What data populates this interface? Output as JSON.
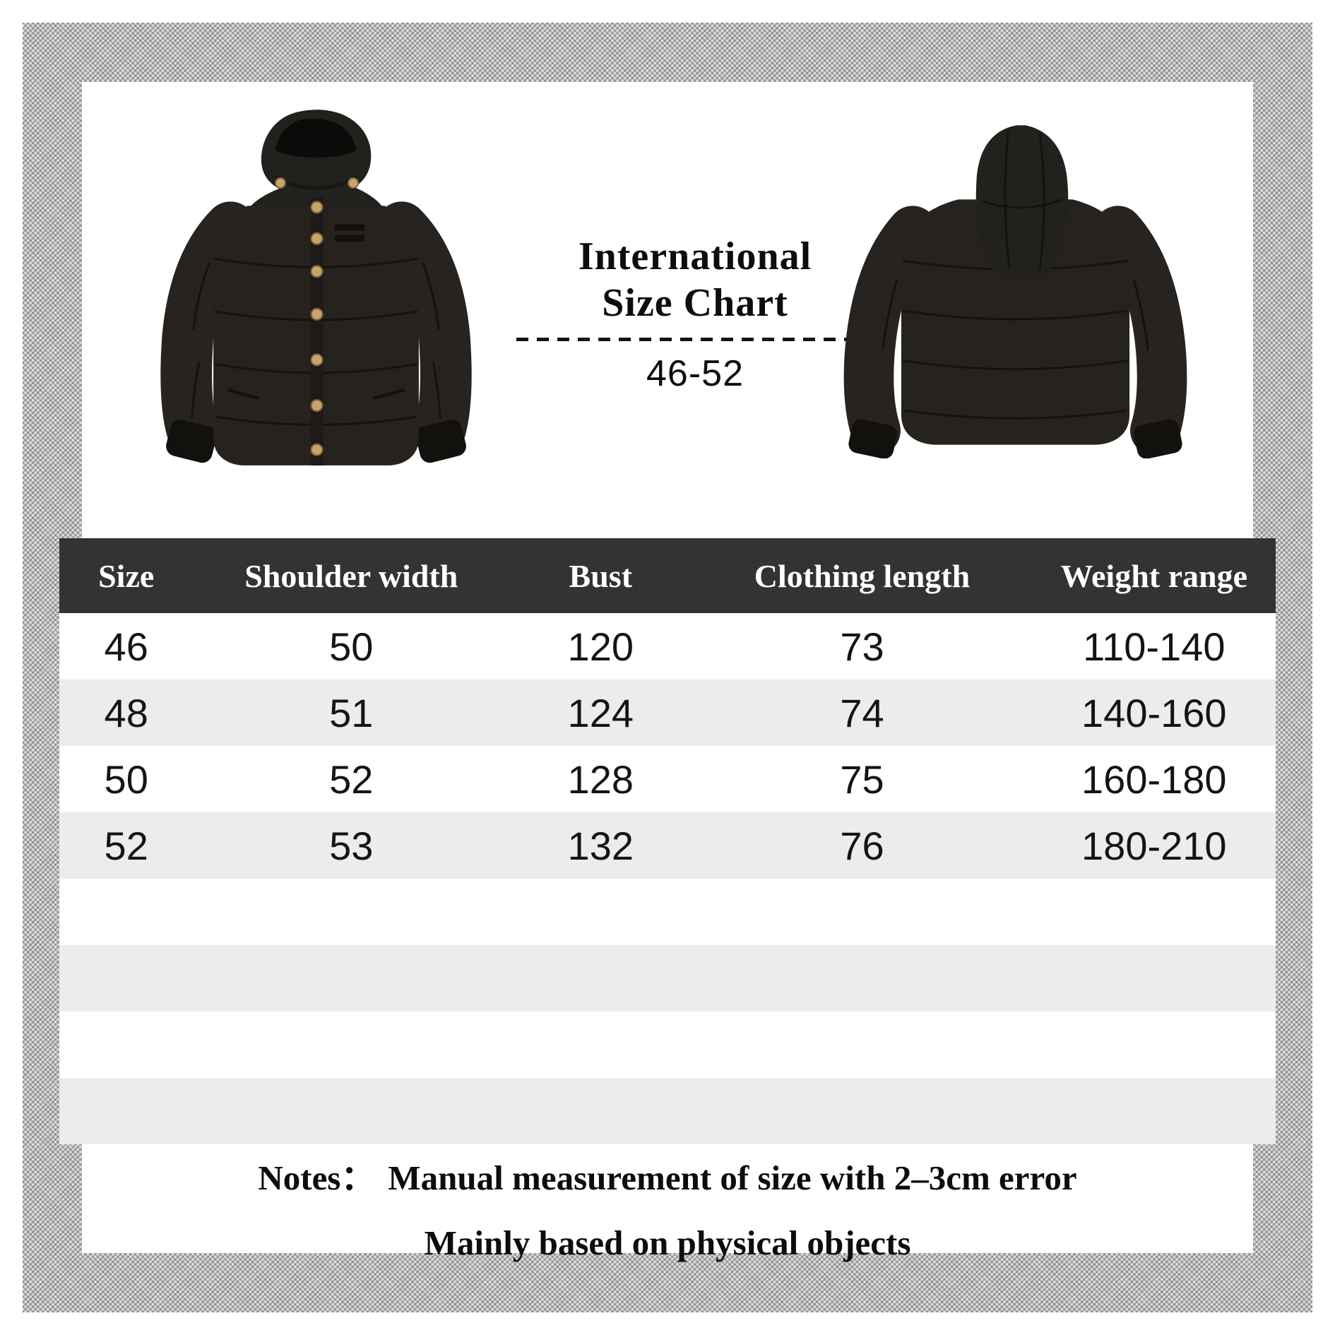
{
  "header": {
    "title_line1": "International",
    "title_line2": "Size Chart",
    "size_range": "46-52"
  },
  "images": {
    "front_jacket": "black-hooded-puffer-jacket-front-view",
    "back_jacket": "black-hooded-puffer-jacket-back-view"
  },
  "table": {
    "headers": [
      "Size",
      "Shoulder width",
      "Bust",
      "Clothing length",
      "Weight range"
    ],
    "rows": [
      [
        "46",
        "50",
        "120",
        "73",
        "110-140"
      ],
      [
        "48",
        "51",
        "124",
        "74",
        "140-160"
      ],
      [
        "50",
        "52",
        "128",
        "75",
        "160-180"
      ],
      [
        "52",
        "53",
        "132",
        "76",
        "180-210"
      ]
    ],
    "empty_row_count": 4
  },
  "notes": {
    "label": "Notes：",
    "line1": "Manual measurement of size with 2–3cm error",
    "line2": "Mainly based on physical objects"
  },
  "colors": {
    "header_bg": "#333333",
    "header_text": "#ffffff",
    "row_alt_bg": "#ececec",
    "jacket_black": "#26231f",
    "button_gold": "#c8a36a",
    "text": "#0d0d0d"
  }
}
